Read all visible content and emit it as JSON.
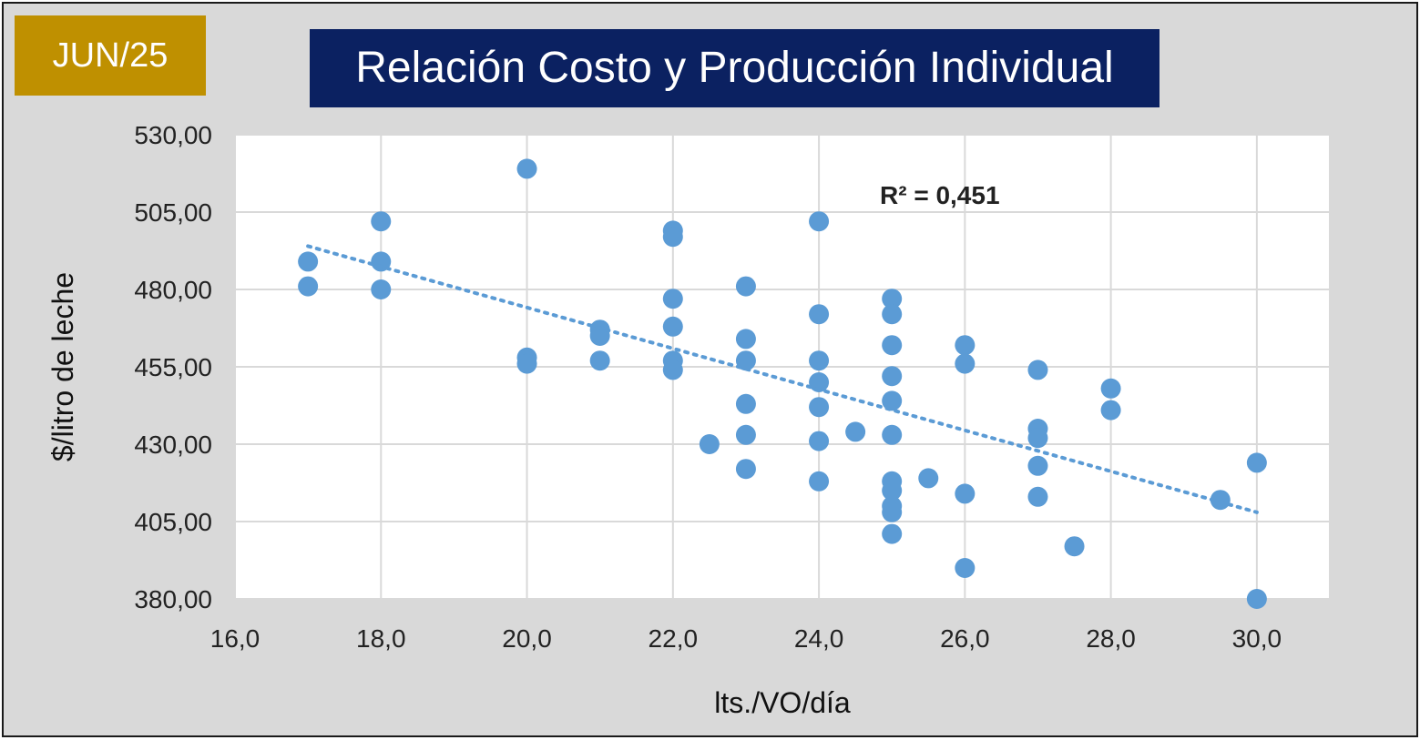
{
  "badge": {
    "date": "JUN/25"
  },
  "chart_data": {
    "type": "scatter",
    "title": "Relación Costo y Producción Individual",
    "xlabel": "lts./VO/día",
    "ylabel": "$/litro de leche",
    "xlim": [
      16.0,
      31.0
    ],
    "ylim": [
      380,
      530
    ],
    "x_ticks": [
      16,
      18,
      20,
      22,
      24,
      26,
      28,
      30
    ],
    "x_tick_labels": [
      "16,0",
      "18,0",
      "20,0",
      "22,0",
      "24,0",
      "26,0",
      "28,0",
      "30,0"
    ],
    "y_ticks": [
      380,
      405,
      430,
      455,
      480,
      505,
      530
    ],
    "y_tick_labels": [
      "380,00",
      "405,00",
      "430,00",
      "455,00",
      "480,00",
      "505,00",
      "530,00"
    ],
    "grid": true,
    "point_color": "#5b9bd5",
    "trendline": {
      "style": "dotted",
      "color": "#5b9bd5",
      "x": [
        17,
        30
      ],
      "y": [
        494,
        408
      ]
    },
    "annotation": "R² = 0,451",
    "points": [
      [
        17,
        489
      ],
      [
        17,
        481
      ],
      [
        18,
        502
      ],
      [
        18,
        489
      ],
      [
        18,
        480
      ],
      [
        20,
        519
      ],
      [
        20,
        458
      ],
      [
        20,
        456
      ],
      [
        21,
        467
      ],
      [
        21,
        465
      ],
      [
        21,
        457
      ],
      [
        22,
        499
      ],
      [
        22,
        497
      ],
      [
        22,
        477
      ],
      [
        22,
        468
      ],
      [
        22,
        457
      ],
      [
        22,
        454
      ],
      [
        22.5,
        430
      ],
      [
        23,
        481
      ],
      [
        23,
        464
      ],
      [
        23,
        457
      ],
      [
        23,
        443
      ],
      [
        23,
        433
      ],
      [
        23,
        422
      ],
      [
        24,
        502
      ],
      [
        24,
        472
      ],
      [
        24,
        457
      ],
      [
        24,
        450
      ],
      [
        24,
        442
      ],
      [
        24,
        431
      ],
      [
        24,
        418
      ],
      [
        24.5,
        434
      ],
      [
        25,
        477
      ],
      [
        25,
        472
      ],
      [
        25,
        462
      ],
      [
        25,
        452
      ],
      [
        25,
        444
      ],
      [
        25,
        433
      ],
      [
        25,
        418
      ],
      [
        25,
        415
      ],
      [
        25,
        410
      ],
      [
        25,
        408
      ],
      [
        25,
        401
      ],
      [
        25.5,
        419
      ],
      [
        26,
        462
      ],
      [
        26,
        456
      ],
      [
        26,
        414
      ],
      [
        26,
        390
      ],
      [
        27,
        454
      ],
      [
        27,
        435
      ],
      [
        27,
        432
      ],
      [
        27,
        423
      ],
      [
        27,
        413
      ],
      [
        27.5,
        397
      ],
      [
        28,
        448
      ],
      [
        28,
        441
      ],
      [
        29.5,
        412
      ],
      [
        30,
        424
      ],
      [
        30,
        380
      ]
    ]
  }
}
